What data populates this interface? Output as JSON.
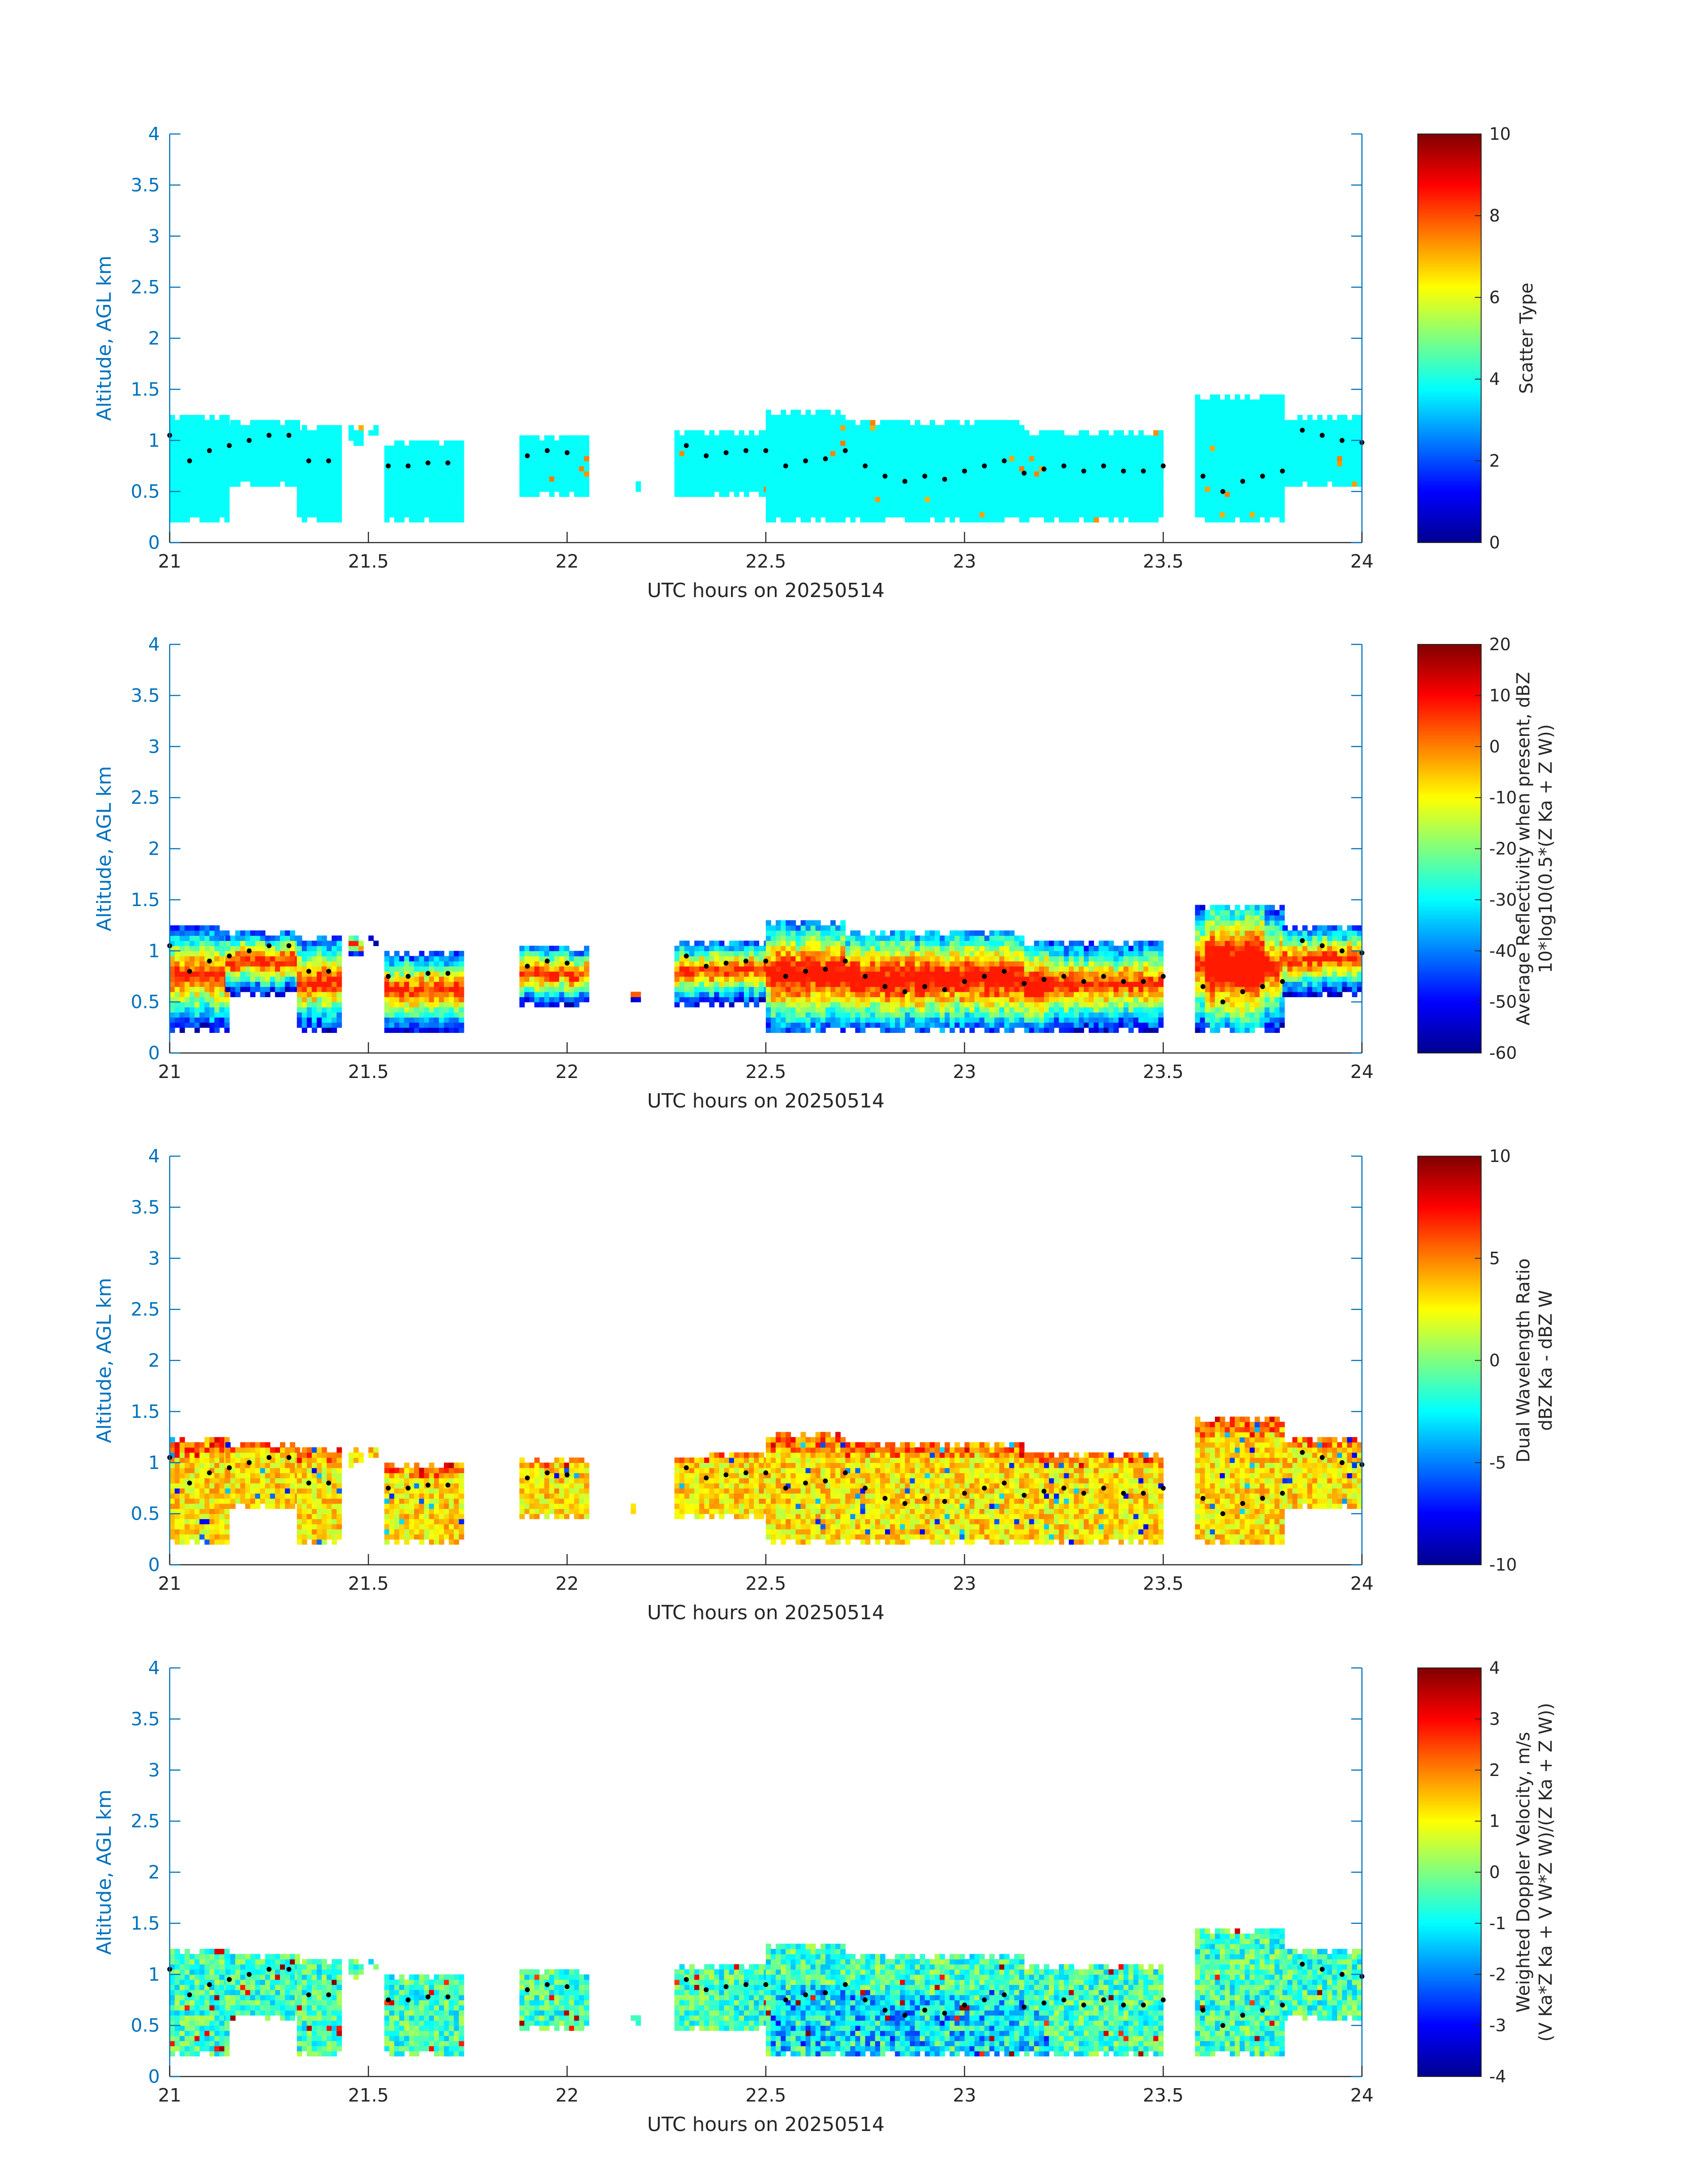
{
  "chart_data": [
    {
      "type": "heatmap",
      "ylabel": "Altitude, AGL km",
      "xlabel": "UTC hours on 20250514",
      "xlim": [
        21,
        24
      ],
      "ylim": [
        0,
        4
      ],
      "xticks": [
        "21",
        "21.5",
        "22",
        "22.5",
        "23",
        "23.5",
        "24"
      ],
      "yticks": [
        "0",
        "0.5",
        "1",
        "1.5",
        "2",
        "2.5",
        "3",
        "3.5",
        "4"
      ],
      "colorbar": {
        "label_lines": [
          "Scatter Type"
        ],
        "ticks": [
          "0",
          "2",
          "4",
          "6",
          "8",
          "10"
        ],
        "range": [
          0,
          10
        ]
      },
      "field": "scatter_type",
      "cloud_top_marker": "black dots"
    },
    {
      "type": "heatmap",
      "ylabel": "Altitude, AGL km",
      "xlabel": "UTC hours on 20250514",
      "xlim": [
        21,
        24
      ],
      "ylim": [
        0,
        4
      ],
      "xticks": [
        "21",
        "21.5",
        "22",
        "22.5",
        "23",
        "23.5",
        "24"
      ],
      "yticks": [
        "0",
        "0.5",
        "1",
        "1.5",
        "2",
        "2.5",
        "3",
        "3.5",
        "4"
      ],
      "colorbar": {
        "label_lines": [
          "Average Reflectivity when present, dBZ",
          "10*log10(0.5*(Z Ka + Z W))"
        ],
        "ticks": [
          "-60",
          "-50",
          "-40",
          "-30",
          "-20",
          "-10",
          "0",
          "10",
          "20"
        ],
        "range": [
          -60,
          20
        ]
      },
      "field": "reflectivity",
      "cloud_top_marker": "black dots"
    },
    {
      "type": "heatmap",
      "ylabel": "Altitude, AGL km",
      "xlabel": "UTC hours on 20250514",
      "xlim": [
        21,
        24
      ],
      "ylim": [
        0,
        4
      ],
      "xticks": [
        "21",
        "21.5",
        "22",
        "22.5",
        "23",
        "23.5",
        "24"
      ],
      "yticks": [
        "0",
        "0.5",
        "1",
        "1.5",
        "2",
        "2.5",
        "3",
        "3.5",
        "4"
      ],
      "colorbar": {
        "label_lines": [
          "Dual Wavelength Ratio",
          "dBZ Ka - dBZ W"
        ],
        "ticks": [
          "-10",
          "-5",
          "0",
          "5",
          "10"
        ],
        "range": [
          -10,
          10
        ]
      },
      "field": "dwr",
      "cloud_top_marker": "black dots"
    },
    {
      "type": "heatmap",
      "ylabel": "Altitude, AGL km",
      "xlabel": "UTC hours on 20250514",
      "xlim": [
        21,
        24
      ],
      "ylim": [
        0,
        4
      ],
      "xticks": [
        "21",
        "21.5",
        "22",
        "22.5",
        "23",
        "23.5",
        "24"
      ],
      "yticks": [
        "0",
        "0.5",
        "1",
        "1.5",
        "2",
        "2.5",
        "3",
        "3.5",
        "4"
      ],
      "colorbar": {
        "label_lines": [
          "Weighted Doppler Velocity, m/s",
          "(V Ka*Z Ka + V W*Z W)/(Z Ka + Z W))"
        ],
        "ticks": [
          "-4",
          "-3",
          "-2",
          "-1",
          "0",
          "1",
          "2",
          "3",
          "4"
        ],
        "range": [
          -4,
          4
        ]
      },
      "field": "velocity",
      "cloud_top_marker": "black dots"
    }
  ],
  "cloud_segments": [
    {
      "x": [
        21.0,
        21.14
      ],
      "base": 0.2,
      "top": 1.25
    },
    {
      "x": [
        21.14,
        21.32
      ],
      "base": 0.55,
      "top": 1.2
    },
    {
      "x": [
        21.32,
        21.43
      ],
      "base": 0.2,
      "top": 1.15
    },
    {
      "x": [
        21.45,
        21.48
      ],
      "base": 0.95,
      "top": 1.15
    },
    {
      "x": [
        21.5,
        21.52
      ],
      "base": 1.05,
      "top": 1.15
    },
    {
      "x": [
        21.54,
        21.73
      ],
      "base": 0.2,
      "top": 1.0
    },
    {
      "x": [
        21.88,
        22.05
      ],
      "base": 0.45,
      "top": 1.05
    },
    {
      "x": [
        22.16,
        22.18
      ],
      "base": 0.5,
      "top": 0.6
    },
    {
      "x": [
        22.27,
        22.5
      ],
      "base": 0.45,
      "top": 1.1
    },
    {
      "x": [
        22.5,
        22.7
      ],
      "base": 0.2,
      "top": 1.3
    },
    {
      "x": [
        22.7,
        23.15
      ],
      "base": 0.2,
      "top": 1.2
    },
    {
      "x": [
        23.15,
        23.5
      ],
      "base": 0.2,
      "top": 1.1
    },
    {
      "x": [
        23.58,
        23.8
      ],
      "base": 0.2,
      "top": 1.45
    },
    {
      "x": [
        23.8,
        24.0
      ],
      "base": 0.55,
      "top": 1.25
    }
  ],
  "cloud_top": {
    "x": [
      21.0,
      21.05,
      21.1,
      21.15,
      21.2,
      21.25,
      21.3,
      21.35,
      21.4,
      21.55,
      21.6,
      21.65,
      21.7,
      21.9,
      21.95,
      22.0,
      22.3,
      22.35,
      22.4,
      22.45,
      22.5,
      22.55,
      22.6,
      22.65,
      22.7,
      22.75,
      22.8,
      22.85,
      22.9,
      22.95,
      23.0,
      23.05,
      23.1,
      23.15,
      23.2,
      23.25,
      23.3,
      23.35,
      23.4,
      23.45,
      23.5,
      23.6,
      23.65,
      23.7,
      23.75,
      23.8,
      23.85,
      23.9,
      23.95,
      24.0
    ],
    "y": [
      1.05,
      0.8,
      0.9,
      0.95,
      1.0,
      1.05,
      1.05,
      0.8,
      0.8,
      0.75,
      0.75,
      0.78,
      0.78,
      0.85,
      0.9,
      0.88,
      0.95,
      0.85,
      0.88,
      0.9,
      0.9,
      0.75,
      0.8,
      0.82,
      0.9,
      0.75,
      0.65,
      0.6,
      0.65,
      0.62,
      0.7,
      0.75,
      0.8,
      0.68,
      0.72,
      0.75,
      0.7,
      0.75,
      0.7,
      0.7,
      0.75,
      0.65,
      0.5,
      0.6,
      0.65,
      0.7,
      1.1,
      1.05,
      1.0,
      0.98
    ]
  }
}
